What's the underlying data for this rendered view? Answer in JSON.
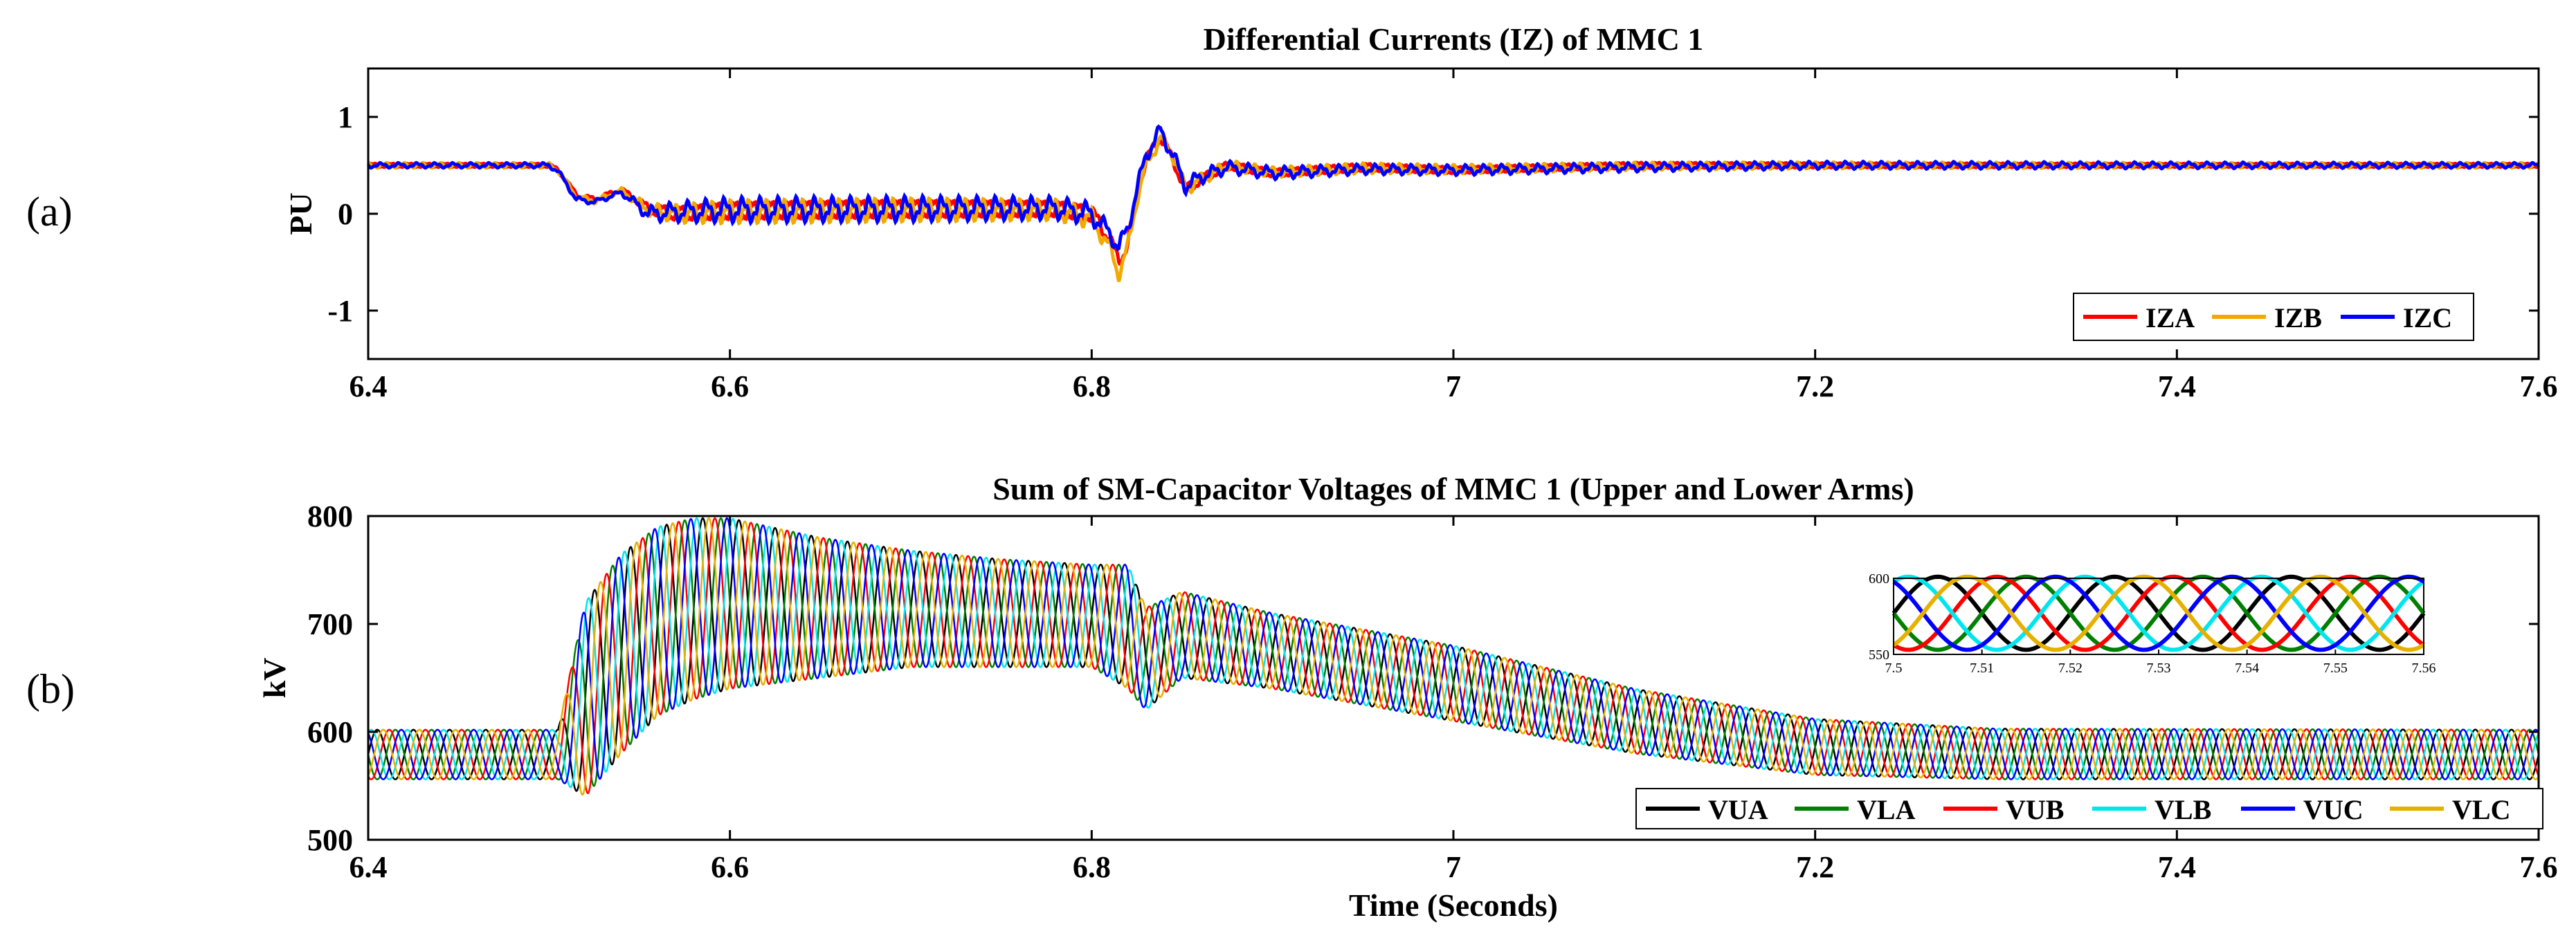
{
  "chart_data": [
    {
      "type": "line",
      "panel_label": "(a)",
      "title": "Differential Currents (IZ) of MMC 1",
      "xlabel": "",
      "ylabel": "PU",
      "xlim": [
        6.4,
        7.6
      ],
      "ylim": [
        -1.5,
        1.5
      ],
      "xticks": [
        6.4,
        6.6,
        6.8,
        7,
        7.2,
        7.4,
        7.6
      ],
      "xtick_labels": [
        "6.4",
        "6.6",
        "6.8",
        "7",
        "7.2",
        "7.4",
        "7.6"
      ],
      "yticks": [
        1,
        0,
        -1
      ],
      "ytick_labels": [
        "1",
        "0",
        "-1"
      ],
      "grid": false,
      "legend_position": "bottom-right",
      "series": [
        {
          "name": "IZA",
          "color": "#ff0000",
          "x": [
            6.4,
            6.5,
            6.505,
            6.515,
            6.525,
            6.54,
            6.555,
            6.57,
            6.6,
            6.7,
            6.78,
            6.8,
            6.81,
            6.815,
            6.82,
            6.825,
            6.83,
            6.838,
            6.845,
            6.852,
            6.86,
            6.875,
            6.9,
            6.95,
            7.0,
            7.1,
            7.2,
            7.4,
            7.6
          ],
          "values": [
            0.5,
            0.5,
            0.45,
            0.2,
            0.15,
            0.25,
            0.05,
            0.0,
            0.03,
            0.05,
            0.05,
            0.0,
            -0.25,
            -0.5,
            -0.3,
            0.2,
            0.55,
            0.8,
            0.55,
            0.25,
            0.35,
            0.5,
            0.42,
            0.48,
            0.45,
            0.5,
            0.5,
            0.5,
            0.5
          ],
          "ripple": [
            0.02,
            0.02,
            0.02,
            0.02,
            0.02,
            0.02,
            0.05,
            0.07,
            0.09,
            0.09,
            0.08,
            0.08,
            0.06,
            0.06,
            0.06,
            0.05,
            0.05,
            0.05,
            0.05,
            0.05,
            0.05,
            0.04,
            0.04,
            0.04,
            0.035,
            0.03,
            0.025,
            0.02,
            0.02
          ]
        },
        {
          "name": "IZB",
          "color": "#f2a900",
          "x": [
            6.4,
            6.5,
            6.505,
            6.515,
            6.525,
            6.54,
            6.555,
            6.57,
            6.6,
            6.7,
            6.78,
            6.8,
            6.81,
            6.815,
            6.82,
            6.825,
            6.83,
            6.838,
            6.845,
            6.852,
            6.86,
            6.875,
            6.9,
            6.95,
            7.0,
            7.1,
            7.2,
            7.4,
            7.6
          ],
          "values": [
            0.5,
            0.5,
            0.45,
            0.18,
            0.13,
            0.24,
            0.04,
            0.0,
            0.02,
            0.04,
            0.04,
            -0.05,
            -0.35,
            -0.62,
            -0.35,
            0.15,
            0.5,
            0.78,
            0.6,
            0.25,
            0.35,
            0.5,
            0.43,
            0.47,
            0.46,
            0.49,
            0.5,
            0.5,
            0.5
          ],
          "ripple": [
            0.02,
            0.02,
            0.02,
            0.02,
            0.02,
            0.02,
            0.05,
            0.07,
            0.09,
            0.09,
            0.08,
            0.08,
            0.06,
            0.06,
            0.06,
            0.05,
            0.05,
            0.05,
            0.05,
            0.05,
            0.05,
            0.04,
            0.04,
            0.04,
            0.035,
            0.03,
            0.025,
            0.02,
            0.02
          ]
        },
        {
          "name": "IZC",
          "color": "#0000ff",
          "x": [
            6.4,
            6.5,
            6.505,
            6.515,
            6.525,
            6.54,
            6.555,
            6.57,
            6.6,
            6.7,
            6.78,
            6.8,
            6.81,
            6.815,
            6.82,
            6.825,
            6.83,
            6.838,
            6.845,
            6.852,
            6.86,
            6.875,
            6.9,
            6.95,
            7.0,
            7.1,
            7.2,
            7.4,
            7.6
          ],
          "values": [
            0.5,
            0.5,
            0.44,
            0.15,
            0.12,
            0.22,
            0.0,
            0.02,
            0.04,
            0.05,
            0.06,
            0.0,
            -0.2,
            -0.35,
            -0.15,
            0.25,
            0.6,
            0.86,
            0.6,
            0.28,
            0.38,
            0.48,
            0.42,
            0.46,
            0.45,
            0.48,
            0.5,
            0.5,
            0.5
          ],
          "ripple": [
            0.02,
            0.02,
            0.02,
            0.02,
            0.02,
            0.02,
            0.06,
            0.08,
            0.1,
            0.1,
            0.09,
            0.09,
            0.07,
            0.07,
            0.07,
            0.06,
            0.06,
            0.06,
            0.06,
            0.06,
            0.06,
            0.05,
            0.05,
            0.04,
            0.04,
            0.035,
            0.03,
            0.025,
            0.02
          ]
        }
      ]
    },
    {
      "type": "line",
      "panel_label": "(b)",
      "title": "Sum of SM-Capacitor Voltages of MMC 1 (Upper and Lower Arms)",
      "xlabel": "Time (Seconds)",
      "ylabel": "kV",
      "xlim": [
        6.4,
        7.6
      ],
      "ylim": [
        500,
        800
      ],
      "xticks": [
        6.4,
        6.6,
        6.8,
        7,
        7.2,
        7.4,
        7.6
      ],
      "xtick_labels": [
        "6.4",
        "6.6",
        "6.8",
        "7",
        "7.2",
        "7.4",
        "7.6"
      ],
      "yticks": [
        500,
        600,
        700,
        800
      ],
      "ytick_labels": [
        "500",
        "600",
        "700",
        "800"
      ],
      "grid": false,
      "legend_position": "bottom-right",
      "oscillation_hz": 50,
      "envelope_x": [
        6.4,
        6.505,
        6.52,
        6.54,
        6.56,
        6.58,
        6.6,
        6.65,
        6.7,
        6.75,
        6.8,
        6.82,
        6.83,
        6.85,
        6.9,
        7.0,
        7.1,
        7.2,
        7.3,
        7.6
      ],
      "envelope_max": [
        602,
        602,
        720,
        765,
        790,
        798,
        798,
        780,
        768,
        760,
        755,
        755,
        715,
        730,
        710,
        680,
        640,
        612,
        603,
        602
      ],
      "envelope_min": [
        556,
        556,
        540,
        580,
        615,
        630,
        640,
        650,
        660,
        660,
        660,
        640,
        620,
        650,
        640,
        610,
        580,
        560,
        556,
        556
      ],
      "series": [
        {
          "name": "VUA",
          "color": "#000000",
          "phase_deg": 0
        },
        {
          "name": "VLA",
          "color": "#008000",
          "phase_deg": 180
        },
        {
          "name": "VUB",
          "color": "#ff0000",
          "phase_deg": 240
        },
        {
          "name": "VLB",
          "color": "#00e5ee",
          "phase_deg": 60
        },
        {
          "name": "VUC",
          "color": "#0000ff",
          "phase_deg": 120
        },
        {
          "name": "VLC",
          "color": "#e6b000",
          "phase_deg": 300
        }
      ],
      "inset": {
        "xlim": [
          7.5,
          7.56
        ],
        "ylim": [
          550,
          600
        ],
        "xticks": [
          7.5,
          7.51,
          7.52,
          7.53,
          7.54,
          7.55,
          7.56
        ],
        "xtick_labels": [
          "7.5",
          "7.51",
          "7.52",
          "7.53",
          "7.54",
          "7.55",
          "7.56"
        ],
        "yticks": [
          550,
          600
        ],
        "ytick_labels": [
          "550",
          "600"
        ],
        "series_min": 553,
        "series_max": 601
      }
    }
  ]
}
